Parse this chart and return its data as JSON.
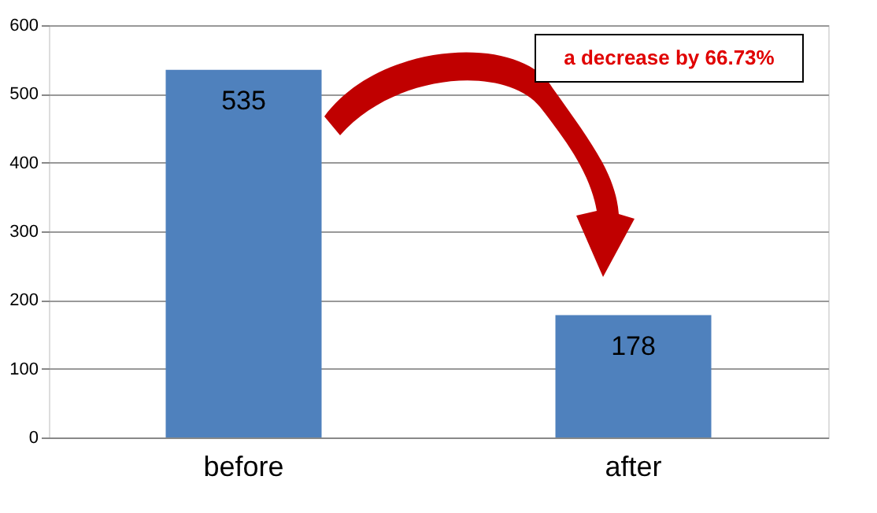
{
  "chart_data": {
    "type": "bar",
    "categories": [
      "before",
      "after"
    ],
    "values": [
      535,
      178
    ],
    "color": "#4f81bd",
    "ylim": [
      0,
      600
    ],
    "yticks": [
      0,
      100,
      200,
      300,
      400,
      500,
      600
    ],
    "grid": "y",
    "data_labels": true,
    "annotations": [
      "a decrease by 66.73%"
    ]
  }
}
